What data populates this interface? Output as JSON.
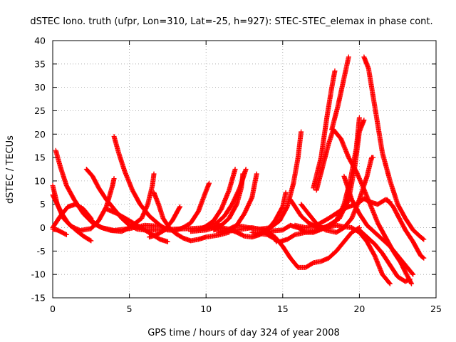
{
  "chart_data": {
    "type": "scatter",
    "title": "dSTEC Iono. truth (ufpr, Lon=310, Lat=-25, h=927): STEC-STEC_elemax in phase cont.",
    "xlabel": "GPS time / hours of day 324 of year 2008",
    "ylabel": "dSTEC  / TECUs",
    "xlim": [
      0,
      25
    ],
    "ylim": [
      -15,
      40
    ],
    "xticks": [
      "0",
      "5",
      "10",
      "15",
      "20",
      "25"
    ],
    "yticks": [
      "-15",
      "-10",
      "-5",
      "0",
      "5",
      "10",
      "15",
      "20",
      "25",
      "30",
      "35",
      "40"
    ],
    "grid": true,
    "marker": "plus",
    "color": "#ff0000",
    "series": [
      {
        "points": [
          [
            0.0,
            9.0
          ],
          [
            0.3,
            5.0
          ],
          [
            0.7,
            2.0
          ],
          [
            1.2,
            0.3
          ],
          [
            1.8,
            -0.6
          ],
          [
            2.5,
            -0.2
          ],
          [
            3.0,
            1.5
          ],
          [
            3.5,
            4.5
          ],
          [
            3.9,
            9.0
          ],
          [
            4.0,
            10.5
          ]
        ]
      },
      {
        "points": [
          [
            0.2,
            16.5
          ],
          [
            0.5,
            13.0
          ],
          [
            0.9,
            9.0
          ],
          [
            1.4,
            6.0
          ],
          [
            2.0,
            3.0
          ],
          [
            2.6,
            1.0
          ],
          [
            3.2,
            0.0
          ],
          [
            4.0,
            -0.6
          ],
          [
            5.0,
            -0.2
          ],
          [
            6.0,
            0.5
          ],
          [
            7.0,
            0.3
          ]
        ]
      },
      {
        "points": [
          [
            0.0,
            7.0
          ],
          [
            0.3,
            5.0
          ],
          [
            0.6,
            3.0
          ],
          [
            1.0,
            1.0
          ],
          [
            1.5,
            -0.5
          ],
          [
            2.0,
            -1.8
          ],
          [
            2.5,
            -2.8
          ]
        ]
      },
      {
        "points": [
          [
            0.0,
            -0.3
          ],
          [
            0.3,
            -0.5
          ],
          [
            0.6,
            -1.0
          ],
          [
            0.9,
            -1.5
          ]
        ]
      },
      {
        "points": [
          [
            0.0,
            0.0
          ],
          [
            0.5,
            2.5
          ],
          [
            1.0,
            4.5
          ],
          [
            1.5,
            5.0
          ],
          [
            2.0,
            4.0
          ],
          [
            2.5,
            2.0
          ]
        ]
      },
      {
        "points": [
          [
            2.2,
            12.5
          ],
          [
            2.6,
            11.0
          ],
          [
            3.0,
            8.5
          ],
          [
            3.5,
            6.0
          ],
          [
            4.0,
            4.0
          ],
          [
            4.5,
            2.0
          ],
          [
            5.0,
            0.5
          ],
          [
            5.5,
            -0.3
          ],
          [
            6.0,
            -0.5
          ],
          [
            7.0,
            -0.5
          ],
          [
            8.0,
            -0.3
          ],
          [
            9.0,
            -0.2
          ],
          [
            10.0,
            0.0
          ],
          [
            11.0,
            0.5
          ]
        ]
      },
      {
        "points": [
          [
            2.3,
            2.5
          ],
          [
            2.7,
            1.0
          ],
          [
            3.2,
            0.0
          ],
          [
            3.8,
            -0.6
          ],
          [
            4.5,
            -0.8
          ],
          [
            5.0,
            0.0
          ],
          [
            5.8,
            2.0
          ],
          [
            6.2,
            5.0
          ],
          [
            6.5,
            9.0
          ],
          [
            6.6,
            11.5
          ]
        ]
      },
      {
        "points": [
          [
            4.0,
            19.5
          ],
          [
            4.3,
            16.0
          ],
          [
            4.7,
            12.0
          ],
          [
            5.2,
            8.0
          ],
          [
            5.7,
            5.0
          ],
          [
            6.3,
            2.5
          ],
          [
            7.0,
            0.5
          ],
          [
            7.5,
            -0.5
          ],
          [
            8.0,
            -0.6
          ],
          [
            8.5,
            0.0
          ],
          [
            9.0,
            1.0
          ],
          [
            9.5,
            3.5
          ],
          [
            9.9,
            7.0
          ],
          [
            10.2,
            9.5
          ]
        ]
      },
      {
        "points": [
          [
            3.5,
            4.0
          ],
          [
            4.2,
            3.0
          ],
          [
            5.0,
            1.5
          ],
          [
            5.5,
            0.5
          ],
          [
            6.0,
            -0.5
          ],
          [
            6.5,
            -1.5
          ],
          [
            7.0,
            -2.5
          ],
          [
            7.5,
            -3.0
          ]
        ]
      },
      {
        "points": [
          [
            6.6,
            7.5
          ],
          [
            6.9,
            5.0
          ],
          [
            7.2,
            2.0
          ],
          [
            7.6,
            0.0
          ],
          [
            8.0,
            -1.2
          ],
          [
            8.5,
            -2.2
          ],
          [
            9.0,
            -2.8
          ],
          [
            9.5,
            -2.5
          ],
          [
            10.0,
            -2.0
          ],
          [
            10.8,
            -1.6
          ],
          [
            11.5,
            -1.0
          ]
        ]
      },
      {
        "points": [
          [
            6.3,
            -2.0
          ],
          [
            6.8,
            -1.5
          ],
          [
            7.3,
            -0.5
          ],
          [
            7.8,
            1.5
          ],
          [
            8.3,
            4.5
          ]
        ]
      },
      {
        "points": [
          [
            9.5,
            -0.5
          ],
          [
            10.0,
            0.3
          ],
          [
            10.5,
            1.5
          ],
          [
            11.0,
            4.0
          ],
          [
            11.5,
            8.0
          ],
          [
            11.9,
            12.5
          ]
        ]
      },
      {
        "points": [
          [
            10.0,
            0.3
          ],
          [
            10.7,
            1.0
          ],
          [
            11.2,
            2.5
          ],
          [
            11.7,
            5.0
          ],
          [
            12.2,
            8.5
          ],
          [
            12.6,
            12.5
          ]
        ]
      },
      {
        "points": [
          [
            9.0,
            -0.8
          ],
          [
            10.0,
            -0.5
          ],
          [
            11.0,
            0.5
          ],
          [
            11.5,
            2.0
          ],
          [
            12.0,
            5.0
          ],
          [
            12.3,
            8.5
          ],
          [
            12.4,
            11.5
          ]
        ]
      },
      {
        "points": [
          [
            10.8,
            -1.0
          ],
          [
            11.5,
            -0.3
          ],
          [
            12.0,
            0.5
          ],
          [
            12.5,
            3.0
          ],
          [
            13.0,
            6.5
          ],
          [
            13.3,
            11.5
          ]
        ]
      },
      {
        "points": [
          [
            10.5,
            -0.5
          ],
          [
            11.0,
            0.0
          ],
          [
            11.5,
            -0.3
          ],
          [
            12.0,
            -1.0
          ],
          [
            12.5,
            -1.8
          ],
          [
            13.0,
            -2.0
          ],
          [
            13.5,
            -1.5
          ],
          [
            14.0,
            -0.5
          ],
          [
            14.5,
            1.5
          ],
          [
            15.0,
            4.5
          ],
          [
            15.2,
            7.5
          ]
        ]
      },
      {
        "points": [
          [
            11.0,
            -1.0
          ],
          [
            12.0,
            -0.5
          ],
          [
            13.0,
            0.0
          ],
          [
            13.8,
            -0.5
          ],
          [
            14.3,
            -1.5
          ],
          [
            14.6,
            -3.0
          ]
        ]
      },
      {
        "points": [
          [
            12.0,
            0.5
          ],
          [
            12.8,
            0.0
          ],
          [
            13.5,
            -0.3
          ],
          [
            14.2,
            0.0
          ],
          [
            14.8,
            1.5
          ],
          [
            15.3,
            4.5
          ],
          [
            15.7,
            9.5
          ],
          [
            16.0,
            15.0
          ],
          [
            16.2,
            20.5
          ]
        ]
      },
      {
        "points": [
          [
            13.5,
            -1.0
          ],
          [
            14.3,
            -0.7
          ],
          [
            15.0,
            -0.5
          ],
          [
            15.5,
            0.5
          ],
          [
            16.0,
            0.0
          ],
          [
            16.5,
            -1.0
          ],
          [
            17.0,
            -1.0
          ]
        ]
      },
      {
        "points": [
          [
            14.0,
            -1.0
          ],
          [
            14.5,
            -2.0
          ],
          [
            15.0,
            -4.0
          ],
          [
            15.5,
            -6.5
          ],
          [
            16.0,
            -8.5
          ],
          [
            16.5,
            -8.5
          ],
          [
            17.0,
            -7.5
          ],
          [
            17.5,
            -7.2
          ],
          [
            18.0,
            -6.5
          ],
          [
            18.5,
            -5.0
          ],
          [
            19.0,
            -3.0
          ],
          [
            19.5,
            -1.0
          ],
          [
            20.0,
            0.0
          ]
        ]
      },
      {
        "points": [
          [
            13.0,
            -1.0
          ],
          [
            14.0,
            -1.5
          ],
          [
            14.8,
            -3.0
          ],
          [
            15.3,
            -2.5
          ],
          [
            15.8,
            -1.5
          ],
          [
            16.5,
            -1.0
          ],
          [
            17.3,
            -0.5
          ],
          [
            18.0,
            0.5
          ],
          [
            18.7,
            2.0
          ],
          [
            19.3,
            6.0
          ],
          [
            19.7,
            13.0
          ],
          [
            20.0,
            20.5
          ],
          [
            20.3,
            23.0
          ]
        ]
      },
      {
        "points": [
          [
            15.5,
            6.0
          ],
          [
            15.8,
            4.5
          ],
          [
            16.2,
            2.5
          ],
          [
            16.7,
            1.0
          ],
          [
            17.3,
            0.0
          ],
          [
            18.0,
            0.0
          ],
          [
            18.5,
            1.5
          ],
          [
            19.0,
            5.0
          ],
          [
            19.4,
            10.0
          ],
          [
            19.8,
            17.0
          ],
          [
            20.0,
            23.5
          ]
        ]
      },
      {
        "points": [
          [
            16.2,
            5.0
          ],
          [
            16.8,
            2.5
          ],
          [
            17.3,
            0.5
          ],
          [
            17.8,
            -0.5
          ],
          [
            18.5,
            -1.0
          ],
          [
            19.0,
            0.0
          ],
          [
            19.5,
            2.0
          ],
          [
            20.0,
            6.0
          ],
          [
            20.5,
            11.0
          ],
          [
            20.8,
            15.0
          ],
          [
            20.9,
            15.0
          ]
        ]
      },
      {
        "points": [
          [
            17.0,
            8.5
          ],
          [
            17.5,
            15.0
          ],
          [
            17.9,
            24.0
          ],
          [
            18.2,
            30.0
          ],
          [
            18.4,
            33.5
          ]
        ]
      },
      {
        "points": [
          [
            18.2,
            21.0
          ],
          [
            18.6,
            26.0
          ],
          [
            19.0,
            32.0
          ],
          [
            19.3,
            36.5
          ]
        ]
      },
      {
        "points": [
          [
            17.2,
            8.0
          ],
          [
            17.6,
            13.0
          ],
          [
            18.0,
            18.0
          ],
          [
            18.3,
            21.0
          ],
          [
            18.8,
            19.0
          ],
          [
            19.3,
            15.0
          ],
          [
            19.8,
            12.0
          ],
          [
            20.2,
            9.0
          ],
          [
            20.7,
            5.0
          ],
          [
            21.2,
            1.0
          ],
          [
            21.7,
            -2.0
          ],
          [
            22.2,
            -5.0
          ],
          [
            22.7,
            -7.5
          ],
          [
            23.0,
            -9.5
          ],
          [
            23.4,
            -12.0
          ]
        ]
      },
      {
        "points": [
          [
            20.3,
            36.5
          ],
          [
            20.6,
            34.0
          ],
          [
            20.9,
            28.0
          ],
          [
            21.2,
            22.0
          ],
          [
            21.5,
            16.0
          ],
          [
            22.0,
            10.0
          ],
          [
            22.5,
            5.0
          ],
          [
            23.0,
            2.0
          ],
          [
            23.5,
            -0.5
          ],
          [
            24.0,
            -2.0
          ],
          [
            24.2,
            -2.5
          ]
        ]
      },
      {
        "points": [
          [
            19.0,
            11.0
          ],
          [
            19.5,
            6.0
          ],
          [
            20.0,
            3.0
          ],
          [
            20.5,
            0.5
          ],
          [
            21.0,
            -1.0
          ],
          [
            21.5,
            -2.5
          ],
          [
            22.0,
            -4.0
          ],
          [
            22.5,
            -6.0
          ],
          [
            23.0,
            -8.0
          ],
          [
            23.5,
            -10.0
          ]
        ]
      },
      {
        "points": [
          [
            20.0,
            -0.5
          ],
          [
            20.5,
            -2.0
          ],
          [
            21.0,
            -3.5
          ],
          [
            21.5,
            -5.5
          ],
          [
            22.0,
            -8.0
          ],
          [
            22.5,
            -10.5
          ],
          [
            23.0,
            -11.5
          ],
          [
            23.3,
            -11.0
          ]
        ]
      },
      {
        "points": [
          [
            21.8,
            6.0
          ],
          [
            22.2,
            4.5
          ],
          [
            22.6,
            2.0
          ],
          [
            23.0,
            -0.5
          ],
          [
            23.5,
            -3.0
          ],
          [
            24.0,
            -6.0
          ],
          [
            24.2,
            -6.5
          ]
        ]
      },
      {
        "points": [
          [
            15.8,
            0.5
          ],
          [
            16.5,
            0.0
          ],
          [
            17.2,
            0.5
          ],
          [
            18.0,
            2.0
          ],
          [
            18.7,
            3.5
          ],
          [
            19.3,
            4.5
          ],
          [
            19.8,
            5.0
          ],
          [
            20.3,
            6.2
          ],
          [
            20.7,
            5.5
          ],
          [
            21.2,
            5.0
          ],
          [
            21.7,
            6.0
          ],
          [
            22.0,
            5.5
          ]
        ]
      },
      {
        "points": [
          [
            17.0,
            -1.0
          ],
          [
            17.8,
            0.0
          ],
          [
            18.5,
            0.5
          ],
          [
            19.0,
            0.2
          ],
          [
            19.5,
            0.0
          ],
          [
            20.0,
            -1.0
          ],
          [
            20.5,
            -3.0
          ],
          [
            21.0,
            -6.0
          ],
          [
            21.5,
            -10.0
          ],
          [
            22.0,
            -12.0
          ]
        ]
      }
    ]
  }
}
